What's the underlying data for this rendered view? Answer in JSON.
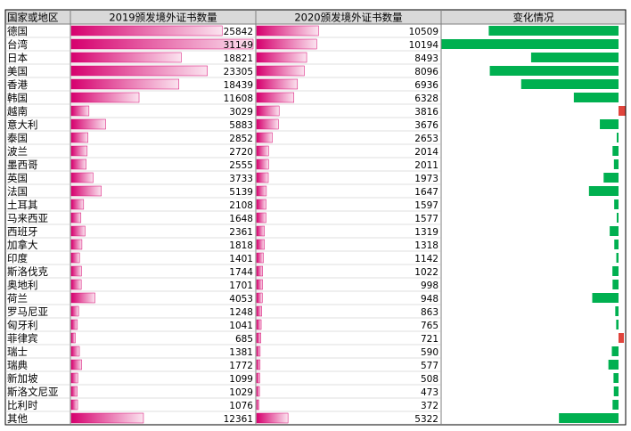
{
  "chart_data": {
    "type": "table",
    "columns": [
      "国家或地区",
      "2019颁发境外证书数量",
      "2020颁发境外证书数量",
      "变化情况"
    ],
    "rows": [
      {
        "region": "德国",
        "y2019": 25842,
        "y2020": 10509
      },
      {
        "region": "台湾",
        "y2019": 31149,
        "y2020": 10194
      },
      {
        "region": "日本",
        "y2019": 18821,
        "y2020": 8493
      },
      {
        "region": "美国",
        "y2019": 23305,
        "y2020": 8096
      },
      {
        "region": "香港",
        "y2019": 18439,
        "y2020": 6936
      },
      {
        "region": "韩国",
        "y2019": 11608,
        "y2020": 6328
      },
      {
        "region": "越南",
        "y2019": 3029,
        "y2020": 3816
      },
      {
        "region": "意大利",
        "y2019": 5883,
        "y2020": 3676
      },
      {
        "region": "泰国",
        "y2019": 2852,
        "y2020": 2653
      },
      {
        "region": "波兰",
        "y2019": 2720,
        "y2020": 2014
      },
      {
        "region": "墨西哥",
        "y2019": 2555,
        "y2020": 2011
      },
      {
        "region": "英国",
        "y2019": 3733,
        "y2020": 1973
      },
      {
        "region": "法国",
        "y2019": 5139,
        "y2020": 1647
      },
      {
        "region": "土耳其",
        "y2019": 2108,
        "y2020": 1597
      },
      {
        "region": "马来西亚",
        "y2019": 1648,
        "y2020": 1577
      },
      {
        "region": "西班牙",
        "y2019": 2361,
        "y2020": 1319
      },
      {
        "region": "加拿大",
        "y2019": 1818,
        "y2020": 1318
      },
      {
        "region": "印度",
        "y2019": 1401,
        "y2020": 1142
      },
      {
        "region": "斯洛伐克",
        "y2019": 1744,
        "y2020": 1022
      },
      {
        "region": "奥地利",
        "y2019": 1701,
        "y2020": 998
      },
      {
        "region": "荷兰",
        "y2019": 4053,
        "y2020": 948
      },
      {
        "region": "罗马尼亚",
        "y2019": 1248,
        "y2020": 863
      },
      {
        "region": "匈牙利",
        "y2019": 1041,
        "y2020": 765
      },
      {
        "region": "菲律宾",
        "y2019": 685,
        "y2020": 721
      },
      {
        "region": "瑞士",
        "y2019": 1381,
        "y2020": 590
      },
      {
        "region": "瑞典",
        "y2019": 1772,
        "y2020": 577
      },
      {
        "region": "新加坡",
        "y2019": 1099,
        "y2020": 508
      },
      {
        "region": "斯洛文尼亚",
        "y2019": 1029,
        "y2020": 473
      },
      {
        "region": "比利时",
        "y2019": 1076,
        "y2020": 372
      },
      {
        "region": "其他",
        "y2019": 12361,
        "y2020": 5322
      }
    ],
    "colors": {
      "bar_dark": "#d6006e",
      "bar_light": "#fbe3ef",
      "decrease": "#00b050",
      "increase": "#e0443c",
      "border": "#7f7f7f",
      "header_bg": "#d9d9d9"
    }
  }
}
